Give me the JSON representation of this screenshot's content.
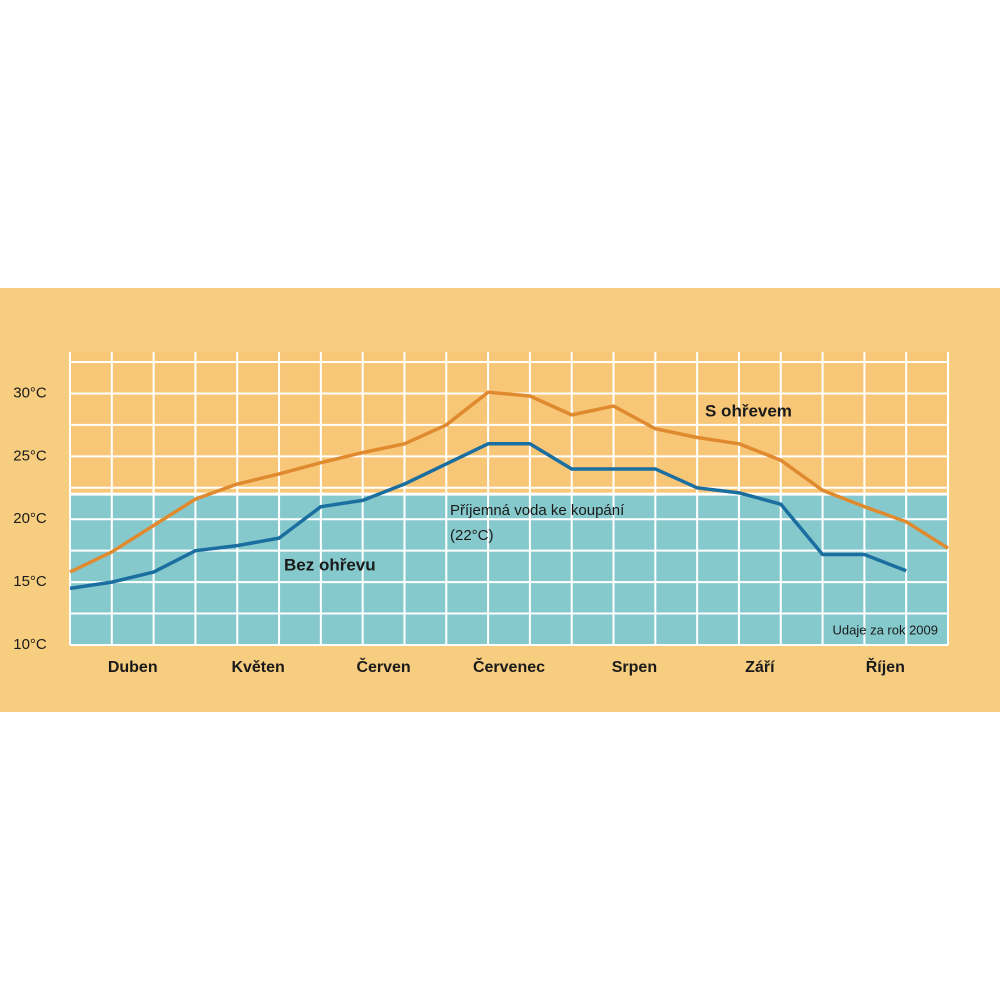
{
  "chart_data": {
    "type": "line",
    "x": [
      0,
      1,
      2,
      3,
      4,
      5,
      6,
      7,
      8,
      9,
      10,
      11,
      12,
      13,
      14,
      15,
      16,
      17,
      18,
      19,
      20,
      21
    ],
    "xlim": [
      0,
      21
    ],
    "month_labels": [
      "Duben",
      "Květen",
      "Červen",
      "Červenec",
      "Srpen",
      "Září",
      "Říjen"
    ],
    "series": [
      {
        "name": "S ohřevem",
        "color": "#e08a30",
        "values": [
          15.8,
          17.4,
          19.5,
          21.6,
          22.8,
          23.6,
          24.5,
          25.3,
          26.0,
          27.5,
          30.1,
          29.8,
          28.3,
          29.0,
          27.2,
          26.5,
          26.0,
          24.7,
          22.3,
          21.0,
          19.8,
          17.7
        ]
      },
      {
        "name": "Bez ohřevu",
        "color": "#1b6fa0",
        "values": [
          14.5,
          15.0,
          15.8,
          17.5,
          17.9,
          18.5,
          21.0,
          21.5,
          22.8,
          24.4,
          26.0,
          26.0,
          24.0,
          24.0,
          24.0,
          22.5,
          22.1,
          21.2,
          17.2,
          17.2,
          15.9,
          null
        ]
      }
    ],
    "ylim": [
      10,
      33.3
    ],
    "yticks": [
      {
        "value": 10,
        "label": "10°C"
      },
      {
        "value": 15,
        "label": "15°C"
      },
      {
        "value": 20,
        "label": "20°C"
      },
      {
        "value": 25,
        "label": "25°C"
      },
      {
        "value": 30,
        "label": "30°C"
      }
    ],
    "ygrid": [
      10,
      12.5,
      15,
      17.5,
      20,
      22.5,
      25,
      27.5,
      30,
      32.5
    ],
    "comfort_level": 22,
    "comfort_color": "#86c9cc",
    "comfort_label": "Příjemná voda ke koupání",
    "comfort_value_label": "(22°C)",
    "note": "Udaje za rok 2009"
  }
}
